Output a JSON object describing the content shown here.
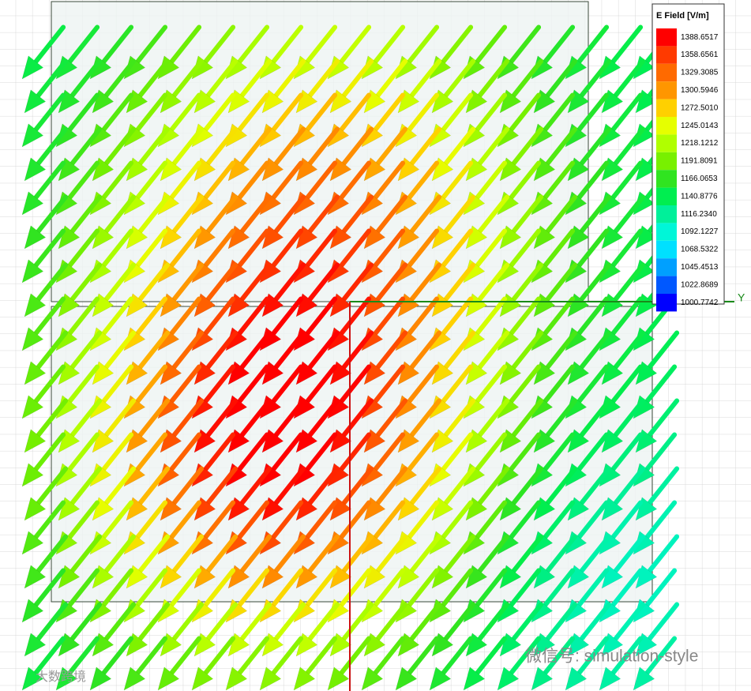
{
  "legend": {
    "title": "E Field [V/m]",
    "labels": [
      "1388.6517",
      "1358.6561",
      "1329.3085",
      "1300.5946",
      "1272.5010",
      "1245.0143",
      "1218.1212",
      "1191.8091",
      "1166.0653",
      "1140.8776",
      "1116.2340",
      "1092.1227",
      "1068.5322",
      "1045.4513",
      "1022.8689",
      "1000.7742"
    ],
    "colors": [
      "#ff0000",
      "#ff3a00",
      "#ff6a00",
      "#ff9600",
      "#ffd000",
      "#e6ff00",
      "#b0ff00",
      "#78f000",
      "#30e420",
      "#00ee50",
      "#00f09a",
      "#00f6d8",
      "#00e0ff",
      "#00a0ff",
      "#0058ff",
      "#0000ff"
    ]
  },
  "axis": {
    "label": "Y"
  },
  "watermark": {
    "right": "微信号: simulation-style",
    "left": "大数跨境"
  }
}
